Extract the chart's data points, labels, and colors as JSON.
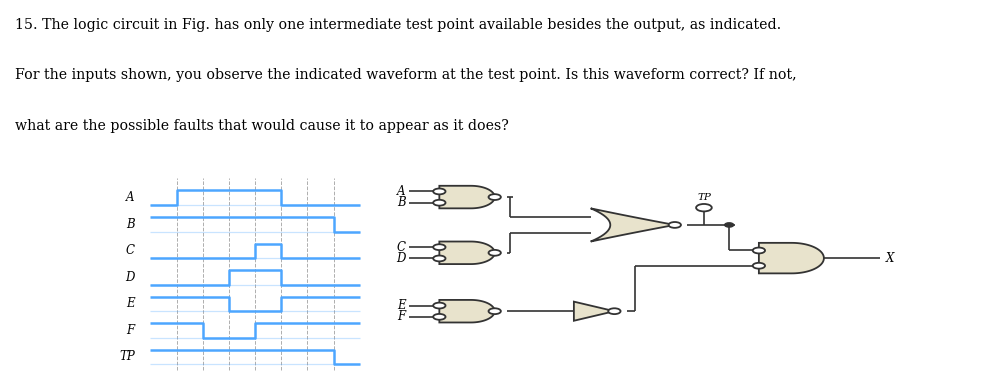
{
  "title_line1": "15. The logic circuit in Fig. has only one intermediate test point available besides the output, as indicated.",
  "title_line2": "For the inputs shown, you observe the indicated waveform at the test point. Is this waveform correct? If not,",
  "title_line3": "what are the possible faults that would cause it to appear as it does?",
  "fig_width": 9.81,
  "fig_height": 3.76,
  "bg_color": "#ffffff",
  "waveform_color": "#4da6ff",
  "waveform_lw": 1.8,
  "grid_color": "#999999",
  "text_color": "#000000",
  "signals": [
    "A",
    "B",
    "C",
    "D",
    "E",
    "F",
    "TP"
  ],
  "waveforms": {
    "A": [
      0,
      1,
      1,
      1,
      1,
      0,
      0,
      0
    ],
    "B": [
      1,
      1,
      1,
      1,
      1,
      1,
      1,
      0
    ],
    "C": [
      0,
      0,
      0,
      0,
      1,
      0,
      0,
      0
    ],
    "D": [
      0,
      0,
      0,
      1,
      1,
      0,
      0,
      0
    ],
    "E": [
      1,
      1,
      1,
      0,
      0,
      1,
      1,
      1
    ],
    "F": [
      1,
      1,
      0,
      0,
      1,
      1,
      1,
      1
    ],
    "TP": [
      1,
      1,
      1,
      1,
      1,
      1,
      1,
      0
    ]
  },
  "gate_fill": "#e8e3cc",
  "gate_edge": "#333333",
  "wire_color": "#333333",
  "bubble_fill": "#ffffff"
}
